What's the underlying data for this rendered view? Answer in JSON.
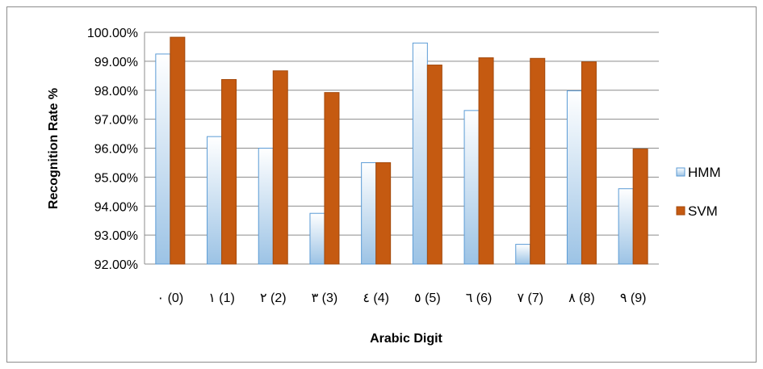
{
  "chart_data": {
    "type": "bar",
    "title": "",
    "xlabel": "Arabic Digit",
    "ylabel": "Recognition Rate %",
    "categories": [
      "٠ (0)",
      "١ (1)",
      "٢ (2)",
      "٣ (3)",
      "٤ (4)",
      "٥ (5)",
      "٦ (6)",
      "٧ (7)",
      "٨ (8)",
      "٩ (9)"
    ],
    "series": [
      {
        "name": "HMM",
        "values": [
          99.25,
          96.4,
          96.0,
          93.75,
          95.5,
          99.63,
          97.3,
          92.68,
          97.98,
          94.6
        ]
      },
      {
        "name": "SVM",
        "values": [
          99.83,
          98.37,
          98.67,
          97.92,
          95.5,
          98.87,
          99.12,
          99.1,
          98.98,
          95.97
        ]
      }
    ],
    "ylim": [
      92,
      100
    ],
    "y_ticks": [
      "92.00%",
      "93.00%",
      "94.00%",
      "95.00%",
      "96.00%",
      "97.00%",
      "98.00%",
      "99.00%",
      "100.00%"
    ],
    "grid": true,
    "legend_position": "right",
    "colors": {
      "HMM_fill_light": "#ffffff",
      "HMM_fill_dark": "#9cc3e5",
      "HMM_border": "#5b9bd5",
      "SVM_fill": "#c55a11",
      "SVM_border": "#a3490c",
      "grid": "#8c8c8c"
    }
  }
}
